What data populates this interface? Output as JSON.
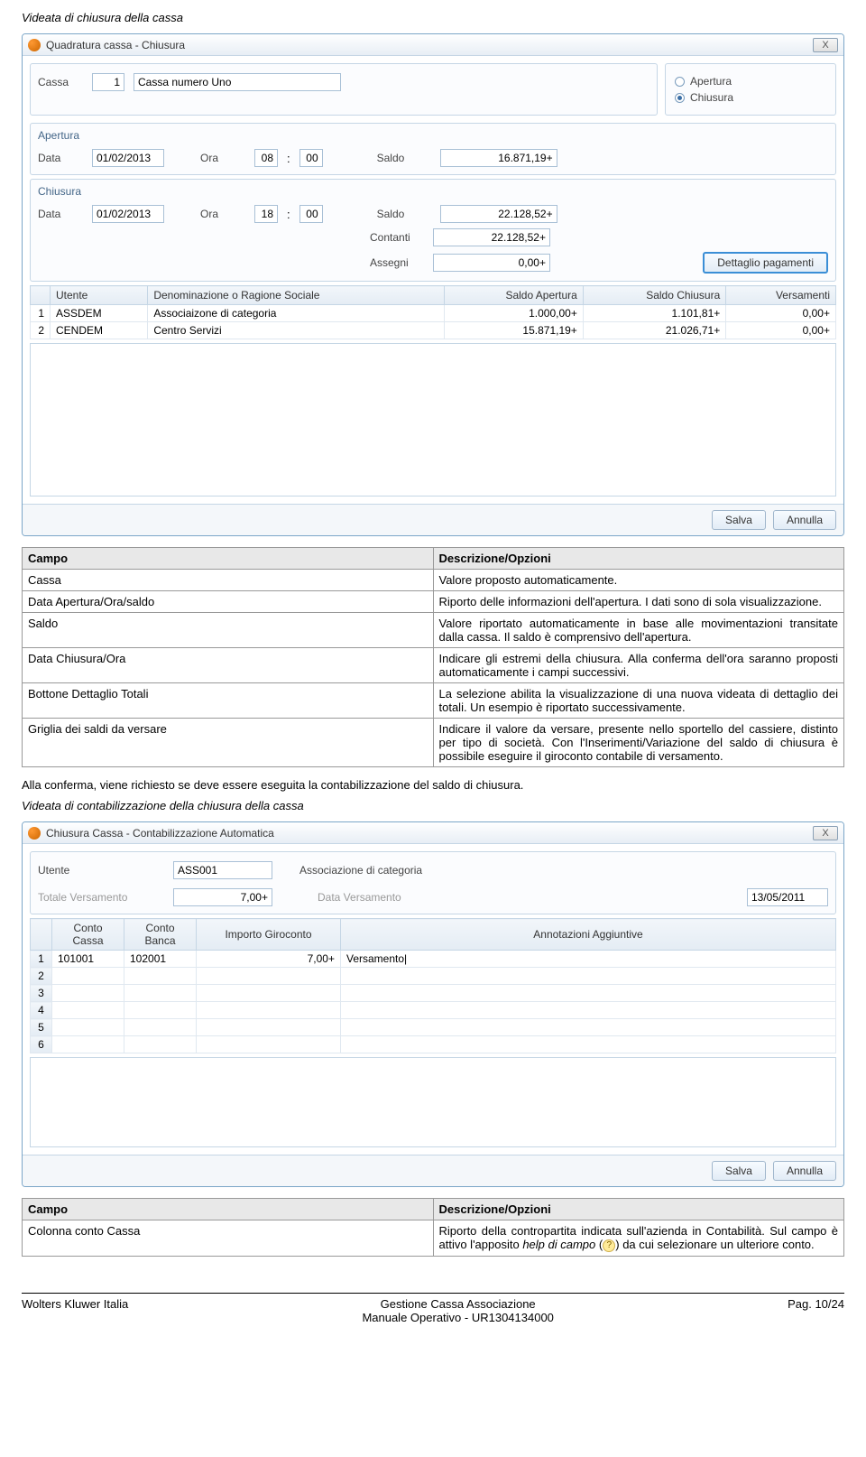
{
  "caption1": "Videata di chiusura della cassa",
  "win1": {
    "title": "Quadratura cassa - Chiusura",
    "close_x": "X",
    "cassa_lbl": "Cassa",
    "cassa_num": "1",
    "cassa_name": "Cassa numero Uno",
    "radio_apertura": "Apertura",
    "radio_chiusura": "Chiusura",
    "apertura": {
      "title": "Apertura",
      "data_lbl": "Data",
      "data": "01/02/2013",
      "ora_lbl": "Ora",
      "ora_h": "08",
      "ora_sep": ":",
      "ora_m": "00",
      "saldo_lbl": "Saldo",
      "saldo": "16.871,19+"
    },
    "chiusura": {
      "title": "Chiusura",
      "data_lbl": "Data",
      "data": "01/02/2013",
      "ora_lbl": "Ora",
      "ora_h": "18",
      "ora_sep": ":",
      "ora_m": "00",
      "saldo_lbl": "Saldo",
      "saldo": "22.128,52+",
      "contanti_lbl": "Contanti",
      "contanti": "22.128,52+",
      "assegni_lbl": "Assegni",
      "assegni": "0,00+",
      "btn_dettaglio": "Dettaglio pagamenti"
    },
    "grid": {
      "h_utente": "Utente",
      "h_denom": "Denominazione o Ragione Sociale",
      "h_saldo_ap": "Saldo Apertura",
      "h_saldo_ch": "Saldo Chiusura",
      "h_vers": "Versamenti",
      "rows": [
        {
          "n": "1",
          "code": "ASSDEM",
          "denom": "Associaizone di categoria",
          "sa": "1.000,00+",
          "sc": "1.101,81+",
          "v": "0,00+"
        },
        {
          "n": "2",
          "code": "CENDEM",
          "denom": "Centro Servizi",
          "sa": "15.871,19+",
          "sc": "21.026,71+",
          "v": "0,00+"
        }
      ]
    },
    "btn_salva": "Salva",
    "btn_annulla": "Annulla"
  },
  "doc1": {
    "h_campo": "Campo",
    "h_descr": "Descrizione/Opzioni",
    "r1_c": "Cassa",
    "r1_d": "Valore proposto automaticamente.",
    "r2_c": "Data Apertura/Ora/saldo",
    "r2_d": "Riporto delle informazioni dell'apertura. I dati sono di sola visualizzazione.",
    "r3_c": "Saldo",
    "r3_d": "Valore riportato automaticamente in base alle movimentazioni transitate dalla cassa. Il saldo è comprensivo dell'apertura.",
    "r4_c": "Data Chiusura/Ora",
    "r4_d": "Indicare gli estremi della chiusura. Alla conferma dell'ora saranno proposti automaticamente i campi successivi.",
    "r5_c": "Bottone Dettaglio Totali",
    "r5_d": "La selezione abilita la visualizzazione di una nuova videata di dettaglio dei totali. Un esempio è riportato successivamente.",
    "r6_c": "Griglia dei saldi da versare",
    "r6_d": "Indicare il valore da versare, presente nello sportello del cassiere, distinto per tipo di società. Con l'Inserimenti/Variazione del saldo di chiusura è possibile eseguire il giroconto contabile di versamento."
  },
  "para1": "Alla conferma, viene richiesto se deve essere eseguita la contabilizzazione del saldo di chiusura.",
  "caption2": "Videata di contabilizzazione della chiusura della cassa",
  "win2": {
    "title": "Chiusura Cassa - Contabilizzazione Automatica",
    "close_x": "X",
    "utente_lbl": "Utente",
    "utente_code": "ASS001",
    "utente_name": "Associazione di categoria",
    "tot_lbl": "Totale Versamento",
    "tot_val": "7,00+",
    "data_vers_lbl": "Data Versamento",
    "data_vers": "13/05/2011",
    "h_idx": "",
    "h_conto_cassa": "Conto Cassa",
    "h_conto_banca": "Conto Banca",
    "h_importo": "Importo Giroconto",
    "h_annot": "Annotazioni Aggiuntive",
    "rows": [
      {
        "n": "1",
        "cc": "101001",
        "cb": "102001",
        "imp": "7,00+",
        "ann": "Versamento|"
      },
      {
        "n": "2",
        "cc": "",
        "cb": "",
        "imp": "",
        "ann": ""
      },
      {
        "n": "3",
        "cc": "",
        "cb": "",
        "imp": "",
        "ann": ""
      },
      {
        "n": "4",
        "cc": "",
        "cb": "",
        "imp": "",
        "ann": ""
      },
      {
        "n": "5",
        "cc": "",
        "cb": "",
        "imp": "",
        "ann": ""
      },
      {
        "n": "6",
        "cc": "",
        "cb": "",
        "imp": "",
        "ann": ""
      }
    ],
    "btn_salva": "Salva",
    "btn_annulla": "Annulla"
  },
  "doc2": {
    "h_campo": "Campo",
    "h_descr": "Descrizione/Opzioni",
    "r1_c": "Colonna conto Cassa",
    "r1_d_pre": "Riporto della contropartita indicata sull'azienda in Contabilità. Sul campo è attivo l'apposito ",
    "r1_d_help": "help di campo",
    "r1_d_par_open": " (",
    "r1_d_icon": "?",
    "r1_d_par_close": ") ",
    "r1_d_post": "da cui selezionare un ulteriore conto."
  },
  "footer": {
    "left": "Wolters Kluwer Italia",
    "center_l1": "Gestione Cassa Associazione",
    "center_l2": "Manuale Operativo - UR1304134000",
    "right": "Pag. 10/24"
  }
}
